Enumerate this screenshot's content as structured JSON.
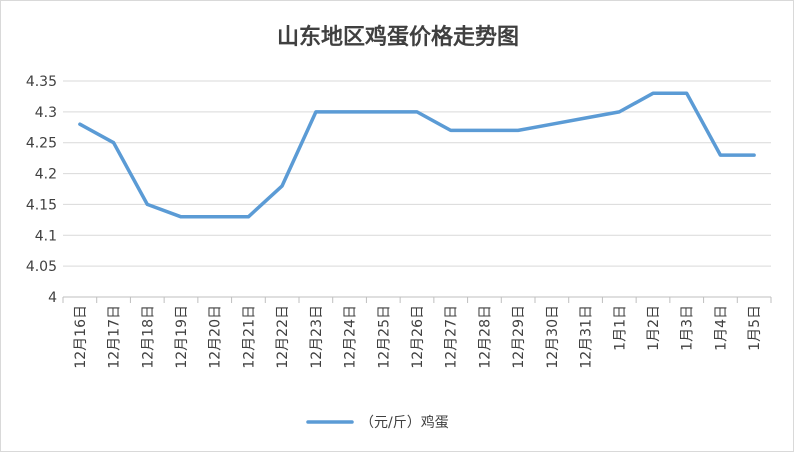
{
  "chart_data": {
    "type": "line",
    "title": "山东地区鸡蛋价格走势图",
    "categories": [
      "12月16日",
      "12月17日",
      "12月18日",
      "12月19日",
      "12月20日",
      "12月21日",
      "12月22日",
      "12月23日",
      "12月24日",
      "12月25日",
      "12月26日",
      "12月27日",
      "12月28日",
      "12月29日",
      "12月30日",
      "12月31日",
      "1月1日",
      "1月2日",
      "1月3日",
      "1月4日",
      "1月5日"
    ],
    "series": [
      {
        "name": "（元/斤）鸡蛋",
        "color": "#5b9bd5",
        "values": [
          4.28,
          4.25,
          4.15,
          4.13,
          4.13,
          4.13,
          4.18,
          4.3,
          4.3,
          4.3,
          4.3,
          4.27,
          4.27,
          4.27,
          4.28,
          4.29,
          4.3,
          4.33,
          4.33,
          4.23,
          4.23
        ]
      }
    ],
    "ylim": [
      4,
      4.35
    ],
    "yticks": [
      "4",
      "4.05",
      "4.1",
      "4.15",
      "4.2",
      "4.25",
      "4.3",
      "4.35"
    ],
    "grid": true,
    "legend": "bottom"
  }
}
